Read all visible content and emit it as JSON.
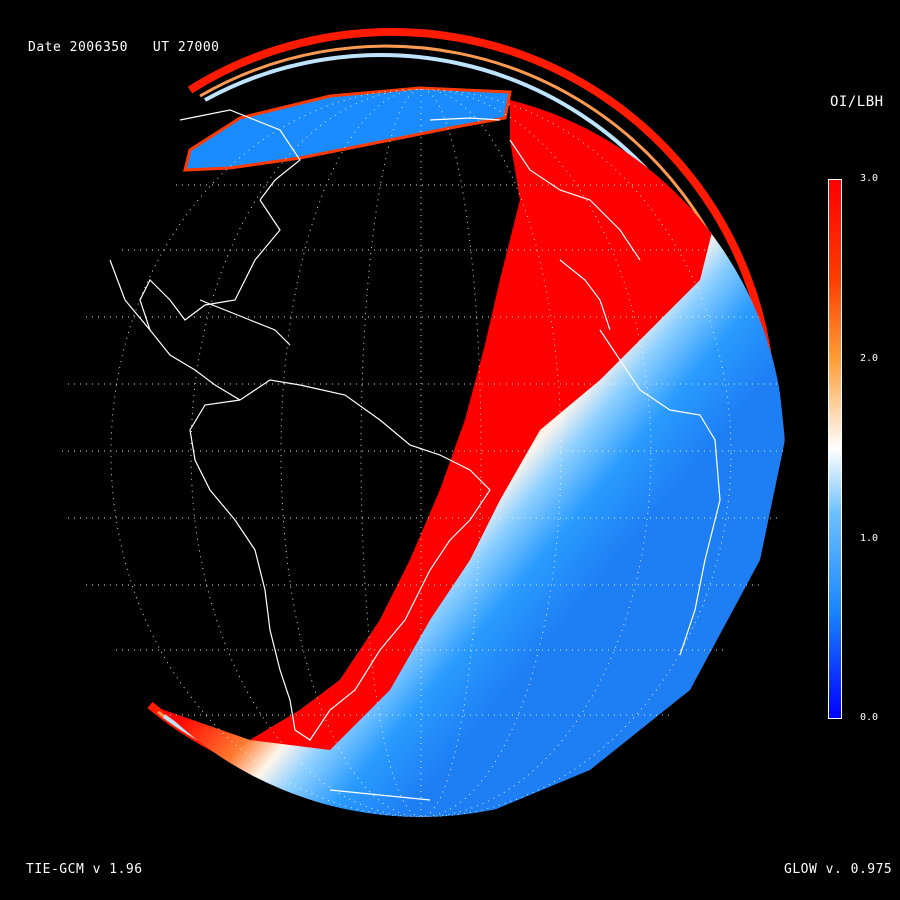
{
  "header": {
    "date_text": "Date 2006350   UT 27000"
  },
  "footer": {
    "model_text": "TIE-GCM v 1.96",
    "glow_text": "GLOW v. 0.975"
  },
  "colorbar": {
    "title": "OI/LBH",
    "ticks": [
      "3.0",
      "2.0",
      "1.0",
      "0.0"
    ],
    "colors": {
      "high": "#ff0000",
      "mid_high": "#ff8c00",
      "mid": "#ffffff",
      "mid_low": "#1e90ff",
      "low": "#0000ff"
    }
  },
  "map": {
    "projection": "orthographic globe",
    "background": "#000000",
    "coastline_color": "#ffffff",
    "grid": "dotted white"
  }
}
